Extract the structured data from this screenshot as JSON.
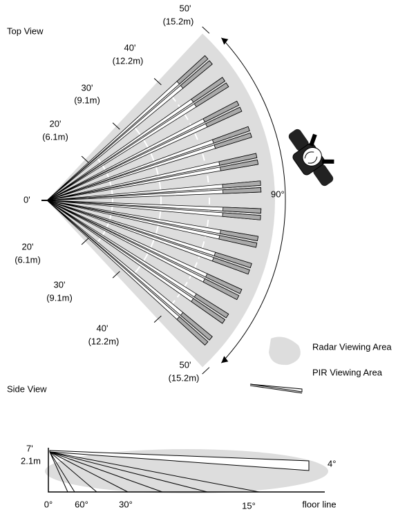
{
  "top_view": {
    "title": "Top View",
    "origin_label": "0'",
    "angle_label": "90°",
    "upper_distances": [
      {
        "feet": "50'",
        "meters": "(15.2m)"
      },
      {
        "feet": "40'",
        "meters": "(12.2m)"
      },
      {
        "feet": "30'",
        "meters": "(9.1m)"
      },
      {
        "feet": "20'",
        "meters": "(6.1m)"
      }
    ],
    "lower_distances": [
      {
        "feet": "20'",
        "meters": "(6.1m)"
      },
      {
        "feet": "30'",
        "meters": "(9.1m)"
      },
      {
        "feet": "40'",
        "meters": "(12.2m)"
      },
      {
        "feet": "50'",
        "meters": "(15.2m)"
      }
    ]
  },
  "legend": {
    "radar": "Radar Viewing Area",
    "pir": "PIR Viewing Area"
  },
  "side_view": {
    "title": "Side View",
    "height_feet": "7'",
    "height_meters": "2.1m",
    "beam_angle": "4°",
    "floor_angles": [
      "0°",
      "60°",
      "30°",
      "15°"
    ],
    "floor_label": "floor line"
  }
}
